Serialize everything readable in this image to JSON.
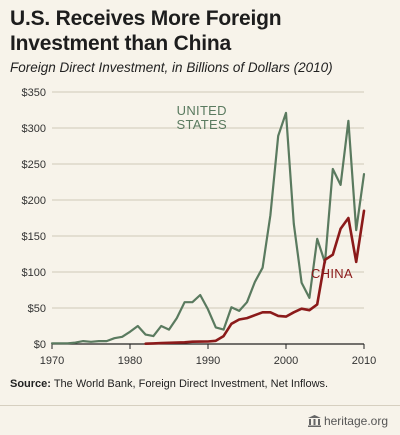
{
  "title": "U.S. Receives More Foreign Investment than China",
  "subtitle": "Foreign Direct Investment, in Billions of Dollars (2010)",
  "source": {
    "label": "Source:",
    "text": " The World Bank, Foreign Direct Investment, Net Inflows."
  },
  "brand": {
    "text": "heritage.org",
    "icon": "heritage-building-icon"
  },
  "colors": {
    "us": "#5a7a5f",
    "china": "#8b1a1a",
    "grid": "#cfc8b8",
    "axis": "#222222"
  },
  "chart_data": {
    "type": "line",
    "title": "U.S. Receives More Foreign Investment than China",
    "subtitle": "Foreign Direct Investment, in Billions of Dollars (2010)",
    "xlim": [
      1970,
      2010
    ],
    "ylim": [
      0,
      350
    ],
    "x_ticks": [
      1970,
      1980,
      1990,
      2000,
      2010
    ],
    "y_ticks": [
      0,
      50,
      100,
      150,
      200,
      250,
      300,
      350
    ],
    "y_tick_labels": [
      "$0",
      "$50",
      "$100",
      "$150",
      "$200",
      "$250",
      "$300",
      "$350"
    ],
    "grid": "horizontal",
    "series": [
      {
        "name": "UNITED STATES",
        "label_lines": [
          "UNITED",
          "STATES"
        ],
        "x": [
          1970,
          1971,
          1972,
          1973,
          1974,
          1975,
          1976,
          1977,
          1978,
          1979,
          1980,
          1981,
          1982,
          1983,
          1984,
          1985,
          1986,
          1987,
          1988,
          1989,
          1990,
          1991,
          1992,
          1993,
          1994,
          1995,
          1996,
          1997,
          1998,
          1999,
          2000,
          2001,
          2002,
          2003,
          2004,
          2005,
          2006,
          2007,
          2008,
          2009,
          2010
        ],
        "values": [
          1,
          1,
          1,
          2,
          4,
          3,
          4,
          4,
          8,
          10,
          17,
          25,
          13,
          11,
          25,
          20,
          36,
          58,
          58,
          68,
          48,
          23,
          20,
          51,
          46,
          58,
          86,
          106,
          179,
          289,
          321,
          167,
          85,
          64,
          146,
          113,
          243,
          221,
          310,
          158,
          236
        ]
      },
      {
        "name": "CHINA",
        "label_lines": [
          "CHINA"
        ],
        "x": [
          1982,
          1983,
          1984,
          1985,
          1986,
          1987,
          1988,
          1989,
          1990,
          1991,
          1992,
          1993,
          1994,
          1995,
          1996,
          1997,
          1998,
          1999,
          2000,
          2001,
          2002,
          2003,
          2004,
          2005,
          2006,
          2007,
          2008,
          2009,
          2010
        ],
        "values": [
          0.4,
          0.9,
          1.3,
          1.7,
          1.9,
          2.3,
          3.2,
          3.4,
          3.5,
          4.4,
          11,
          28,
          34,
          36,
          40,
          44,
          44,
          39,
          38,
          44,
          49,
          47,
          55,
          117,
          124,
          160,
          175,
          114,
          185
        ]
      }
    ]
  }
}
